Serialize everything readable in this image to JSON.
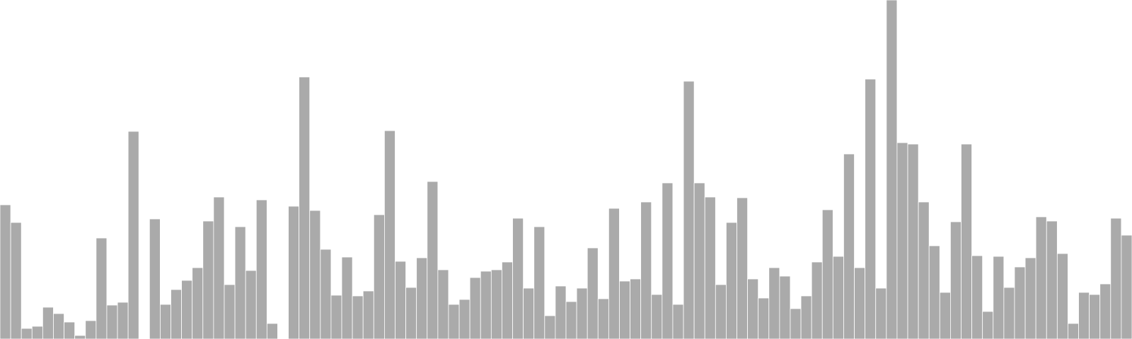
{
  "chart_data": {
    "type": "bar",
    "title": "",
    "xlabel": "",
    "ylabel": "",
    "ylim": [
      0,
      480
    ],
    "grid": false,
    "legend": "none",
    "bar_color": "#aaaaaa",
    "bar_edge_color": "#ffffff",
    "values": [
      190,
      165,
      15,
      18,
      45,
      36,
      24,
      5,
      26,
      143,
      48,
      52,
      294,
      0,
      170,
      49,
      70,
      83,
      101,
      167,
      201,
      77,
      159,
      97,
      197,
      22,
      0,
      188,
      371,
      182,
      127,
      62,
      116,
      61,
      68,
      176,
      295,
      110,
      73,
      115,
      223,
      98,
      49,
      56,
      87,
      96,
      98,
      109,
      171,
      72,
      159,
      33,
      75,
      53,
      72,
      129,
      57,
      185,
      82,
      85,
      194,
      63,
      221,
      49,
      365,
      221,
      201,
      77,
      165,
      200,
      85,
      58,
      101,
      89,
      43,
      61,
      109,
      183,
      117,
      262,
      101,
      368,
      72,
      480,
      278,
      276,
      194,
      132,
      66,
      166,
      276,
      118,
      39,
      117,
      73,
      102,
      115,
      173,
      167,
      121,
      22,
      66,
      63,
      78,
      171,
      147
    ]
  }
}
